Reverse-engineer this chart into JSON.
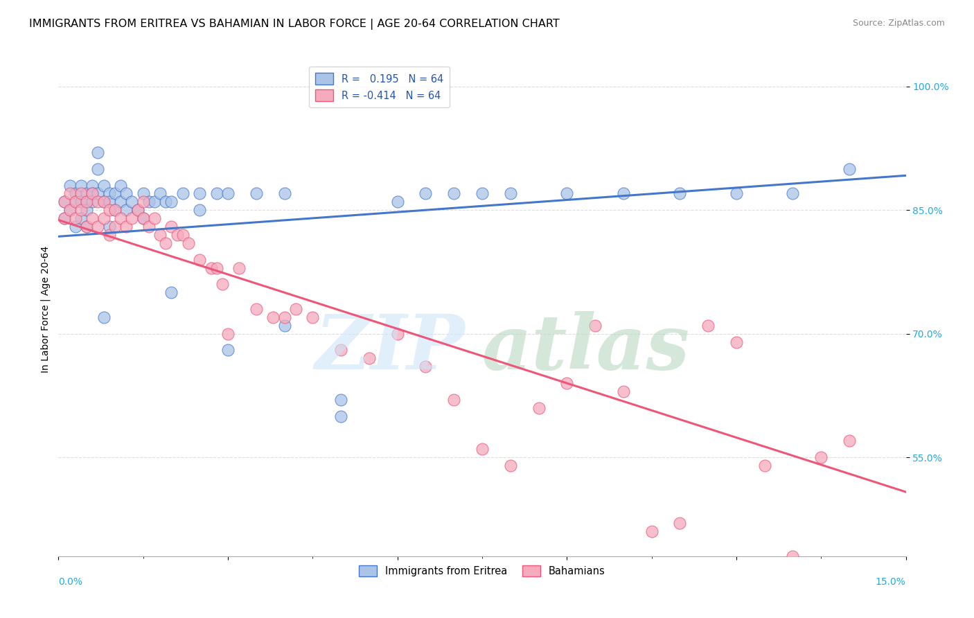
{
  "title": "IMMIGRANTS FROM ERITREA VS BAHAMIAN IN LABOR FORCE | AGE 20-64 CORRELATION CHART",
  "source": "Source: ZipAtlas.com",
  "ylabel": "In Labor Force | Age 20-64",
  "xlim": [
    0.0,
    0.15
  ],
  "ylim": [
    0.43,
    1.03
  ],
  "color_blue": "#aac4e8",
  "color_pink": "#f5aabe",
  "line_blue": "#4477cc",
  "line_pink": "#ee5577",
  "watermark_zip_color": "#cce0f5",
  "watermark_atlas_color": "#b8d8b8",
  "blue_line_x": [
    0.0,
    0.15
  ],
  "blue_line_y": [
    0.818,
    0.892
  ],
  "pink_line_x": [
    0.0,
    0.15
  ],
  "pink_line_y": [
    0.838,
    0.508
  ],
  "grid_color": "#dddddd",
  "background_color": "#ffffff",
  "title_fontsize": 11.5,
  "axis_label_fontsize": 10,
  "tick_fontsize": 10,
  "source_fontsize": 9,
  "ytick_vals": [
    0.55,
    0.7,
    0.85,
    1.0
  ],
  "ytick_labels": [
    "55.0%",
    "70.0%",
    "85.0%",
    "100.0%"
  ],
  "blue_scatter_x": [
    0.001,
    0.001,
    0.002,
    0.002,
    0.003,
    0.003,
    0.003,
    0.004,
    0.004,
    0.004,
    0.005,
    0.005,
    0.005,
    0.005,
    0.006,
    0.006,
    0.006,
    0.007,
    0.007,
    0.007,
    0.008,
    0.008,
    0.009,
    0.009,
    0.009,
    0.01,
    0.01,
    0.011,
    0.011,
    0.012,
    0.012,
    0.013,
    0.014,
    0.015,
    0.016,
    0.017,
    0.018,
    0.019,
    0.02,
    0.022,
    0.025,
    0.028,
    0.03,
    0.035,
    0.04,
    0.05,
    0.06,
    0.065,
    0.07,
    0.075,
    0.08,
    0.09,
    0.1,
    0.11,
    0.12,
    0.13,
    0.14,
    0.008,
    0.015,
    0.02,
    0.025,
    0.03,
    0.04,
    0.05
  ],
  "blue_scatter_y": [
    0.86,
    0.84,
    0.88,
    0.85,
    0.87,
    0.86,
    0.83,
    0.88,
    0.86,
    0.84,
    0.87,
    0.86,
    0.85,
    0.83,
    0.88,
    0.87,
    0.86,
    0.92,
    0.9,
    0.87,
    0.88,
    0.86,
    0.87,
    0.86,
    0.83,
    0.87,
    0.85,
    0.88,
    0.86,
    0.87,
    0.85,
    0.86,
    0.85,
    0.87,
    0.86,
    0.86,
    0.87,
    0.86,
    0.86,
    0.87,
    0.87,
    0.87,
    0.87,
    0.87,
    0.87,
    0.62,
    0.86,
    0.87,
    0.87,
    0.87,
    0.87,
    0.87,
    0.87,
    0.87,
    0.87,
    0.87,
    0.9,
    0.72,
    0.84,
    0.75,
    0.85,
    0.68,
    0.71,
    0.6
  ],
  "pink_scatter_x": [
    0.001,
    0.001,
    0.002,
    0.002,
    0.003,
    0.003,
    0.004,
    0.004,
    0.005,
    0.005,
    0.006,
    0.006,
    0.007,
    0.007,
    0.008,
    0.008,
    0.009,
    0.009,
    0.01,
    0.01,
    0.011,
    0.012,
    0.013,
    0.014,
    0.015,
    0.015,
    0.016,
    0.017,
    0.018,
    0.019,
    0.02,
    0.021,
    0.022,
    0.023,
    0.025,
    0.027,
    0.028,
    0.029,
    0.03,
    0.032,
    0.035,
    0.038,
    0.04,
    0.042,
    0.045,
    0.05,
    0.055,
    0.06,
    0.065,
    0.07,
    0.075,
    0.08,
    0.085,
    0.09,
    0.095,
    0.1,
    0.105,
    0.11,
    0.115,
    0.12,
    0.125,
    0.13,
    0.135,
    0.14
  ],
  "pink_scatter_y": [
    0.86,
    0.84,
    0.87,
    0.85,
    0.86,
    0.84,
    0.87,
    0.85,
    0.86,
    0.83,
    0.87,
    0.84,
    0.86,
    0.83,
    0.86,
    0.84,
    0.85,
    0.82,
    0.85,
    0.83,
    0.84,
    0.83,
    0.84,
    0.85,
    0.86,
    0.84,
    0.83,
    0.84,
    0.82,
    0.81,
    0.83,
    0.82,
    0.82,
    0.81,
    0.79,
    0.78,
    0.78,
    0.76,
    0.7,
    0.78,
    0.73,
    0.72,
    0.72,
    0.73,
    0.72,
    0.68,
    0.67,
    0.7,
    0.66,
    0.62,
    0.56,
    0.54,
    0.61,
    0.64,
    0.71,
    0.63,
    0.46,
    0.47,
    0.71,
    0.69,
    0.54,
    0.43,
    0.55,
    0.57
  ]
}
